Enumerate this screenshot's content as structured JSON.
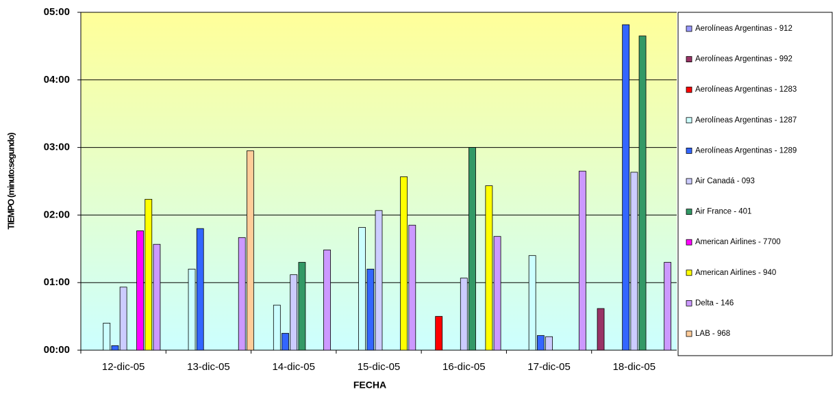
{
  "chart_data": {
    "type": "bar",
    "x_label": "FECHA",
    "y_label": "TIEMPO (minuto:segundo)",
    "categories": [
      "12-dic-05",
      "13-dic-05",
      "14-dic-05",
      "15-dic-05",
      "16-dic-05",
      "17-dic-05",
      "18-dic-05"
    ],
    "series": [
      {
        "name": "Aerolíneas Argentinas - 912",
        "color": "#9999ff",
        "values": [
          null,
          null,
          null,
          null,
          null,
          null,
          null
        ]
      },
      {
        "name": "Aerolíneas Argentinas - 992",
        "color": "#993366",
        "values": [
          null,
          null,
          null,
          null,
          null,
          null,
          37
        ]
      },
      {
        "name": "Aerolíneas Argentinas - 1283",
        "color": "#ff0000",
        "values": [
          null,
          null,
          null,
          null,
          30,
          null,
          null
        ]
      },
      {
        "name": "Aerolíneas Argentinas - 1287",
        "color": "#ccffff",
        "values": [
          24,
          72,
          40,
          109,
          null,
          84,
          null
        ]
      },
      {
        "name": "Aerolíneas Argentinas - 1289",
        "color": "#3366ff",
        "values": [
          4,
          108,
          15,
          72,
          null,
          13,
          289
        ]
      },
      {
        "name": "Air Canadá - 093",
        "color": "#ccccff",
        "values": [
          56,
          null,
          67,
          124,
          64,
          12,
          158
        ]
      },
      {
        "name": "Air France - 401",
        "color": "#339966",
        "values": [
          null,
          null,
          78,
          null,
          180,
          null,
          279
        ]
      },
      {
        "name": "American Airlines - 7700",
        "color": "#ff00ff",
        "values": [
          106,
          null,
          null,
          null,
          null,
          null,
          null
        ]
      },
      {
        "name": "American Airlines - 940",
        "color": "#ffff00",
        "values": [
          134,
          null,
          null,
          154,
          146,
          null,
          null
        ]
      },
      {
        "name": "Delta - 146",
        "color": "#cc99ff",
        "values": [
          94,
          100,
          89,
          111,
          101,
          159,
          78
        ]
      },
      {
        "name": "LAB - 968",
        "color": "#ffcc99",
        "values": [
          null,
          177,
          null,
          null,
          null,
          null,
          null
        ]
      }
    ],
    "ylim": [
      0,
      300
    ],
    "yticks": [
      {
        "value": 0,
        "label": "00:00"
      },
      {
        "value": 60,
        "label": "01:00"
      },
      {
        "value": 120,
        "label": "02:00"
      },
      {
        "value": 180,
        "label": "03:00"
      },
      {
        "value": 240,
        "label": "04:00"
      },
      {
        "value": 300,
        "label": "05:00"
      }
    ],
    "grid": true,
    "legend": "right"
  }
}
